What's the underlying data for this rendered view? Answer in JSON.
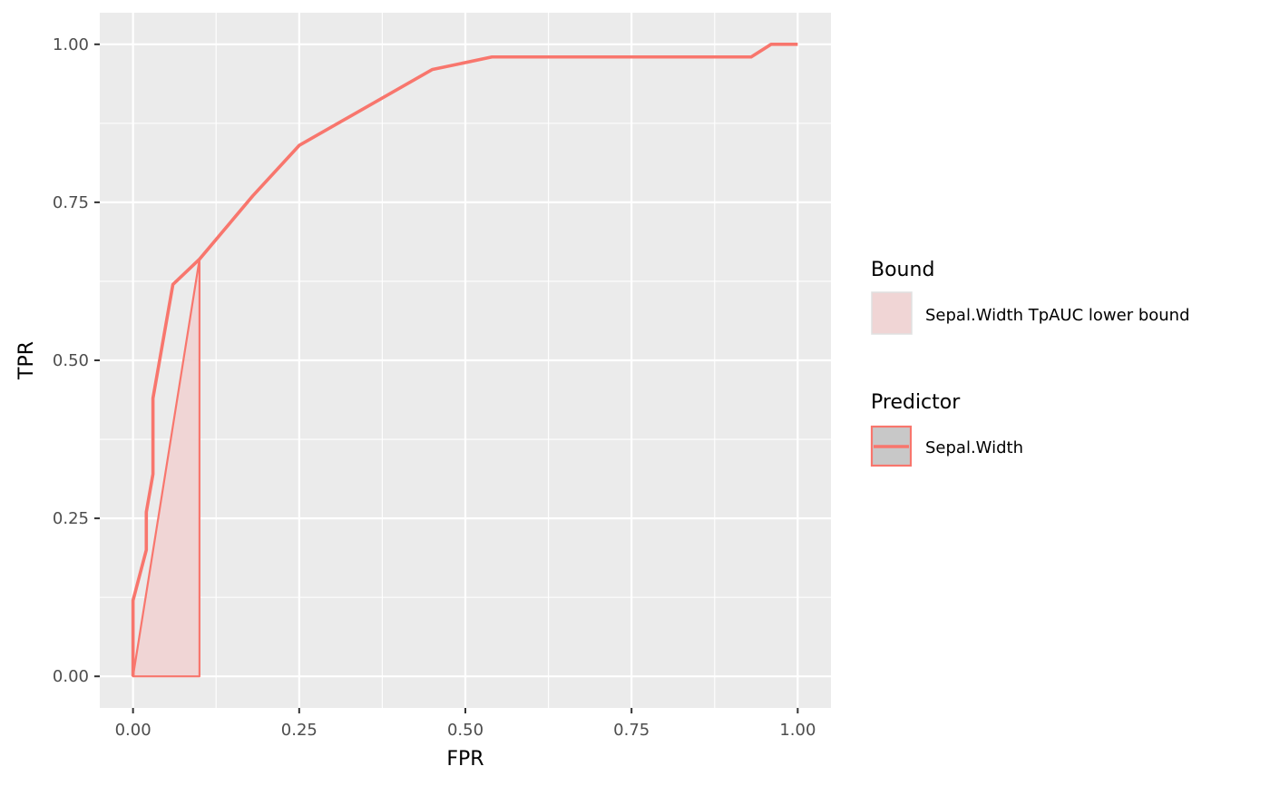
{
  "chart_data": {
    "type": "line",
    "xlabel": "FPR",
    "ylabel": "TPR",
    "xlim": [
      -0.05,
      1.05
    ],
    "ylim": [
      -0.05,
      1.05
    ],
    "x_ticks": [
      0,
      0.25,
      0.5,
      0.75,
      1
    ],
    "x_tick_labels": [
      "0.00",
      "0.25",
      "0.50",
      "0.75",
      "1.00"
    ],
    "y_ticks": [
      0,
      0.25,
      0.5,
      0.75,
      1
    ],
    "y_tick_labels": [
      "0.00",
      "0.25",
      "0.50",
      "0.75",
      "1.00"
    ],
    "grid": true,
    "legend_position": "right",
    "series": [
      {
        "name": "Sepal.Width",
        "color": "#F8766D",
        "x": [
          0,
          0,
          0.02,
          0.02,
          0.03,
          0.03,
          0.06,
          0.1,
          0.18,
          0.25,
          0.45,
          0.54,
          0.93,
          0.96,
          1.0
        ],
        "y": [
          0,
          0.12,
          0.2,
          0.26,
          0.32,
          0.44,
          0.62,
          0.66,
          0.76,
          0.84,
          0.96,
          0.98,
          0.98,
          1.0,
          1.0
        ]
      }
    ],
    "bound_polygon": {
      "name": "Sepal.Width TpAUC lower bound",
      "fill": "#F8766D",
      "fill_opacity": 0.2,
      "x": [
        0,
        0.1,
        0.1
      ],
      "y": [
        0,
        0,
        0.66
      ]
    },
    "legend": {
      "bound_title": "Bound",
      "bound_label": "Sepal.Width TpAUC lower bound",
      "predictor_title": "Predictor",
      "predictor_label": "Sepal.Width"
    },
    "colors": {
      "panel_background": "#EBEBEB",
      "grid_color": "#FFFFFF",
      "line": "#F8766D",
      "polygon_fill": "#F0D5D5",
      "predictor_key_fill": "#C8C8C8"
    }
  }
}
